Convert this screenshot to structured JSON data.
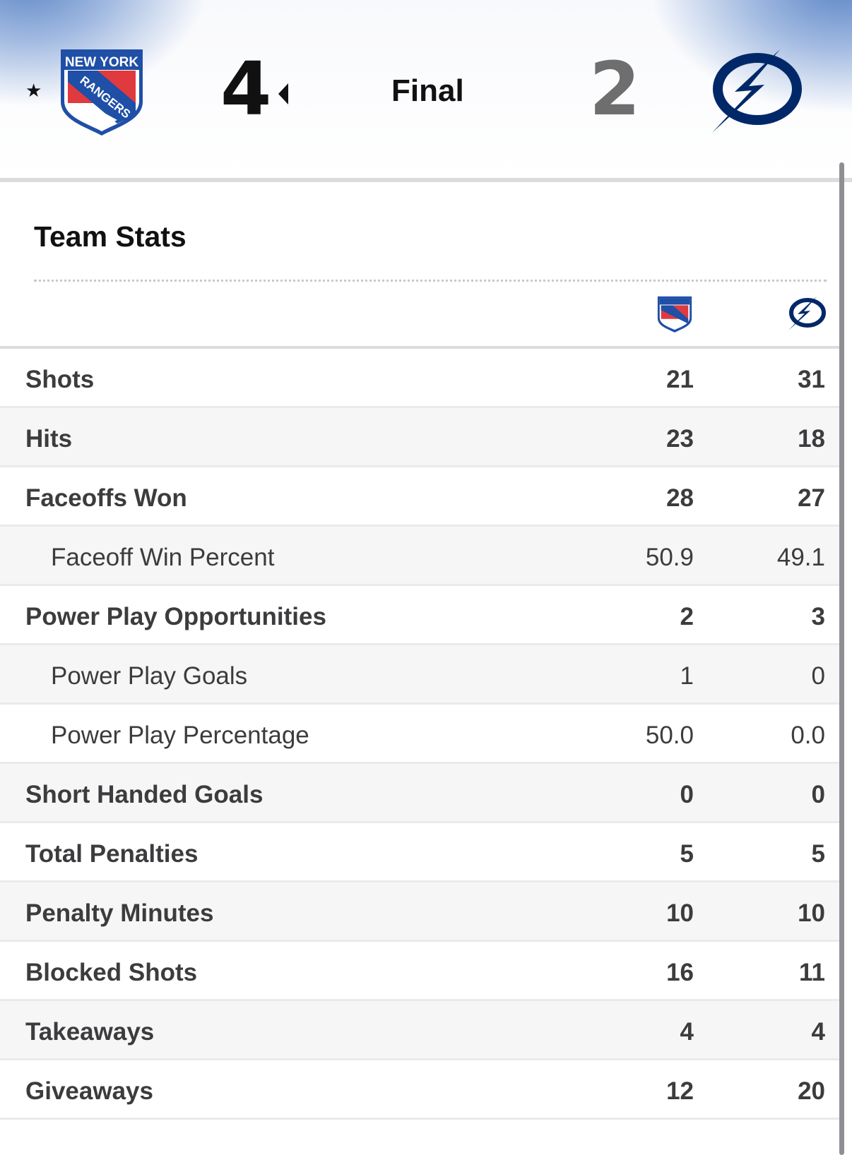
{
  "scoreboard": {
    "home_team_logo": "new-york-rangers-logo",
    "home_logo_text_top": "NEW YORK",
    "home_logo_text_diag": "RANGERS",
    "home_score": "4",
    "status": "Final",
    "away_score": "2",
    "away_team_logo": "tampa-bay-lightning-logo",
    "winner_marker": "★",
    "colors": {
      "rangers_blue": "#1f4fa6",
      "rangers_red": "#e03a3e",
      "lightning_blue": "#002868"
    }
  },
  "team_stats": {
    "title": "Team Stats",
    "rows": [
      {
        "label": "Shots",
        "home": "21",
        "away": "31",
        "sub": false
      },
      {
        "label": "Hits",
        "home": "23",
        "away": "18",
        "sub": false
      },
      {
        "label": "Faceoffs Won",
        "home": "28",
        "away": "27",
        "sub": false
      },
      {
        "label": "Faceoff Win Percent",
        "home": "50.9",
        "away": "49.1",
        "sub": true
      },
      {
        "label": "Power Play Opportunities",
        "home": "2",
        "away": "3",
        "sub": false
      },
      {
        "label": "Power Play Goals",
        "home": "1",
        "away": "0",
        "sub": true
      },
      {
        "label": "Power Play Percentage",
        "home": "50.0",
        "away": "0.0",
        "sub": true
      },
      {
        "label": "Short Handed Goals",
        "home": "0",
        "away": "0",
        "sub": false
      },
      {
        "label": "Total Penalties",
        "home": "5",
        "away": "5",
        "sub": false
      },
      {
        "label": "Penalty Minutes",
        "home": "10",
        "away": "10",
        "sub": false
      },
      {
        "label": "Blocked Shots",
        "home": "16",
        "away": "11",
        "sub": false
      },
      {
        "label": "Takeaways",
        "home": "4",
        "away": "4",
        "sub": false
      },
      {
        "label": "Giveaways",
        "home": "12",
        "away": "20",
        "sub": false
      }
    ]
  }
}
